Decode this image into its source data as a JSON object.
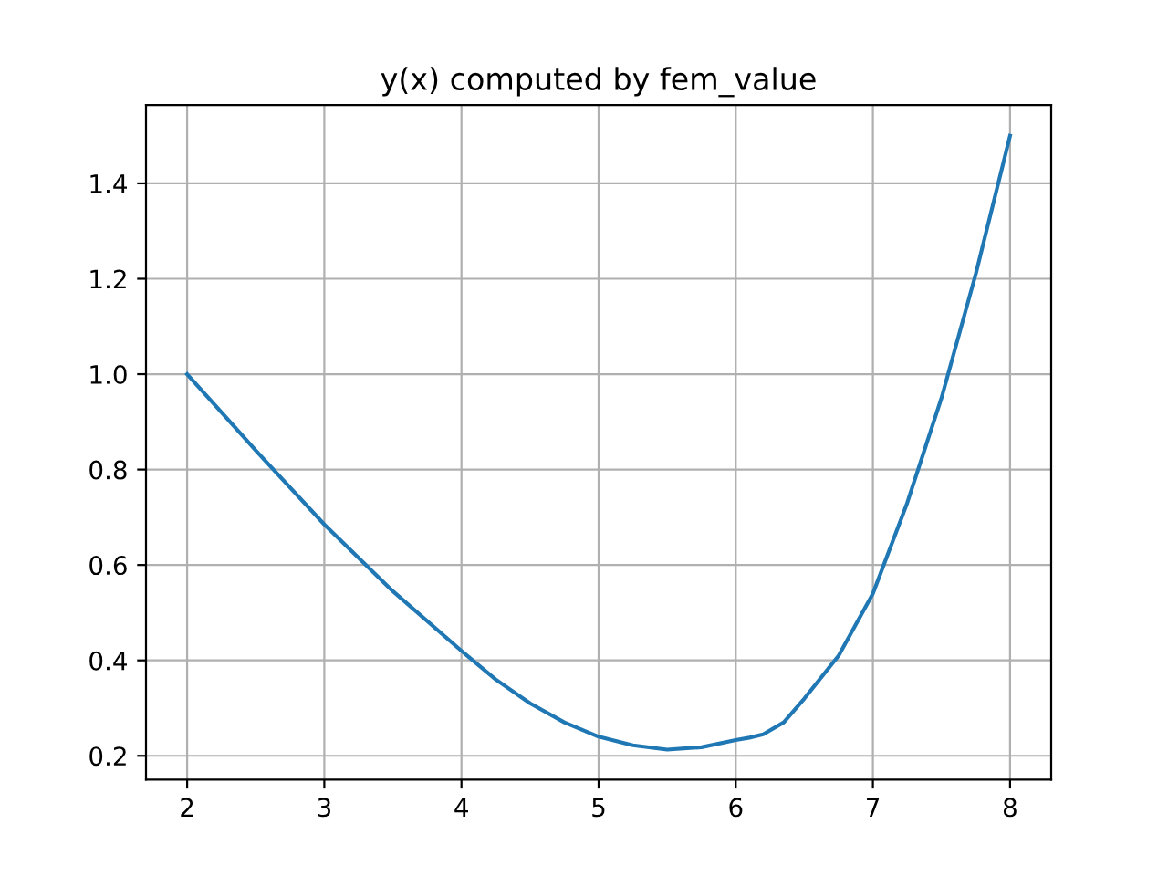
{
  "chart_data": {
    "type": "line",
    "title": "y(x) computed by fem_value",
    "x": [
      2,
      2.5,
      3,
      3.5,
      4,
      4.25,
      4.5,
      4.75,
      5,
      5.25,
      5.5,
      5.75,
      6,
      6.1,
      6.2,
      6.35,
      6.5,
      6.75,
      7,
      7.25,
      7.5,
      7.75,
      8
    ],
    "series": [
      {
        "color": "#1f77b4",
        "values": [
          1.0,
          0.84,
          0.685,
          0.545,
          0.42,
          0.36,
          0.31,
          0.27,
          0.24,
          0.222,
          0.213,
          0.218,
          0.233,
          0.238,
          0.245,
          0.27,
          0.32,
          0.41,
          0.54,
          0.73,
          0.95,
          1.21,
          1.5
        ]
      }
    ],
    "xlim": [
      1.7,
      8.3
    ],
    "ylim": [
      0.15,
      1.564
    ],
    "xticks": [
      2,
      3,
      4,
      5,
      6,
      7,
      8
    ],
    "yticks": [
      0.2,
      0.4,
      0.6,
      0.8,
      {
        "value": 1,
        "label": "1.0"
      },
      1.2,
      1.4
    ],
    "grid": true,
    "legend": false,
    "marker": "none",
    "line_style": "solid"
  }
}
